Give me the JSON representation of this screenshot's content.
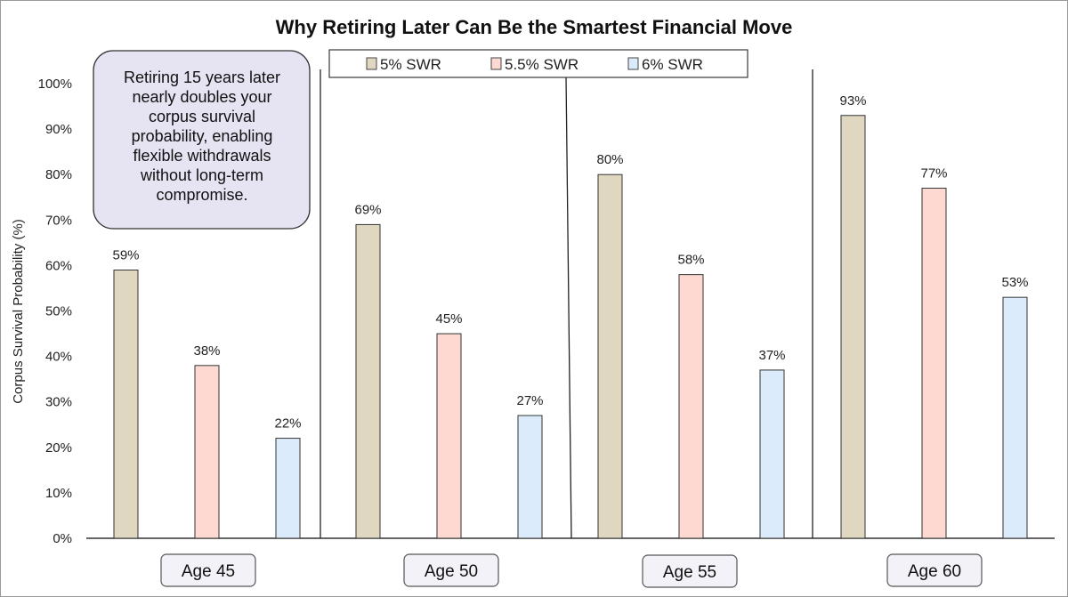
{
  "chart_data": {
    "type": "bar",
    "title": "Why Retiring Later Can Be the Smartest Financial Move",
    "ylabel": "Corpus Survival Probability (%)",
    "xlabel": "",
    "ylim": [
      0,
      100
    ],
    "yticks": [
      "0%",
      "10%",
      "20%",
      "30%",
      "40%",
      "50%",
      "60%",
      "70%",
      "80%",
      "90%",
      "100%"
    ],
    "categories": [
      "Age 45",
      "Age 50",
      "Age 55",
      "Age 60"
    ],
    "series": [
      {
        "name": "5% SWR",
        "values": [
          59,
          69,
          80,
          93
        ],
        "labels": [
          "59%",
          "69%",
          "80%",
          "93%"
        ],
        "color": "#e0d7c0"
      },
      {
        "name": "5.5% SWR",
        "values": [
          38,
          45,
          58,
          77
        ],
        "labels": [
          "38%",
          "45%",
          "58%",
          "77%"
        ],
        "color": "#fdd9d2"
      },
      {
        "name": "6% SWR",
        "values": [
          22,
          27,
          37,
          53
        ],
        "labels": [
          "22%",
          "27%",
          "37%",
          "53%"
        ],
        "color": "#dcebfb"
      }
    ],
    "legend_position": "top-center",
    "grid": false,
    "annotation": {
      "lines": [
        "Retiring 15 years later",
        "nearly doubles your",
        "corpus survival",
        "probability, enabling",
        "flexible withdrawals",
        "without long-term",
        "compromise."
      ],
      "background": "#e6e3f2"
    }
  }
}
